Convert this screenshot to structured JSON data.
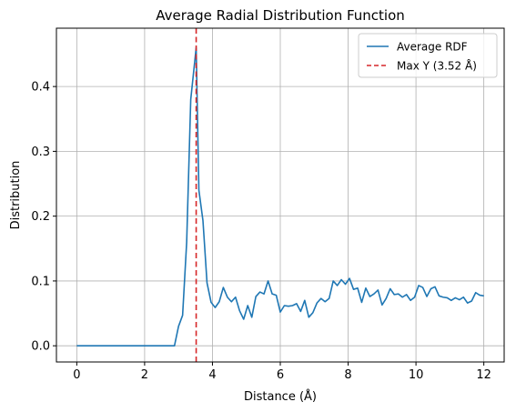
{
  "chart_data": {
    "type": "line",
    "title": "Average Radial Distribution Function",
    "xlabel": "Distance (Å)",
    "ylabel": "Distribution",
    "xlim": [
      -0.6,
      12.6
    ],
    "ylim": [
      -0.025,
      0.49
    ],
    "xticks": [
      0,
      2,
      4,
      6,
      8,
      10,
      12
    ],
    "xtick_labels": [
      "0",
      "2",
      "4",
      "6",
      "8",
      "10",
      "12"
    ],
    "yticks": [
      0.0,
      0.1,
      0.2,
      0.3,
      0.4
    ],
    "ytick_labels": [
      "0.0",
      "0.1",
      "0.2",
      "0.3",
      "0.4"
    ],
    "grid": true,
    "legend_position": "top-right",
    "colors": {
      "series": "#1f77b4",
      "vline": "#d62728",
      "grid": "#b0b0b0"
    },
    "series": [
      {
        "name": "Average RDF",
        "x": [
          0.0,
          0.12,
          0.24,
          0.36,
          0.48,
          0.6,
          0.72,
          0.84,
          0.96,
          1.08,
          1.2,
          1.32,
          1.44,
          1.56,
          1.68,
          1.8,
          1.92,
          2.04,
          2.16,
          2.28,
          2.4,
          2.52,
          2.64,
          2.76,
          2.88,
          3.0,
          3.12,
          3.24,
          3.36,
          3.52,
          3.6,
          3.72,
          3.84,
          3.96,
          4.08,
          4.2,
          4.32,
          4.44,
          4.56,
          4.68,
          4.8,
          4.92,
          5.04,
          5.16,
          5.28,
          5.4,
          5.52,
          5.64,
          5.76,
          5.88,
          6.0,
          6.12,
          6.24,
          6.36,
          6.48,
          6.6,
          6.72,
          6.84,
          6.96,
          7.08,
          7.2,
          7.32,
          7.44,
          7.56,
          7.68,
          7.8,
          7.92,
          8.04,
          8.16,
          8.28,
          8.4,
          8.52,
          8.64,
          8.76,
          8.88,
          9.0,
          9.12,
          9.24,
          9.36,
          9.48,
          9.6,
          9.72,
          9.84,
          9.96,
          10.08,
          10.2,
          10.32,
          10.44,
          10.56,
          10.68,
          10.8,
          10.92,
          11.04,
          11.16,
          11.28,
          11.4,
          11.52,
          11.64,
          11.76,
          11.88,
          12.0
        ],
        "y": [
          0,
          0,
          0,
          0,
          0,
          0,
          0,
          0,
          0,
          0,
          0,
          0,
          0,
          0,
          0,
          0,
          0,
          0,
          0,
          0,
          0,
          0,
          0,
          0,
          0,
          0.03,
          0.047,
          0.16,
          0.38,
          0.46,
          0.24,
          0.193,
          0.097,
          0.067,
          0.059,
          0.068,
          0.09,
          0.075,
          0.068,
          0.075,
          0.054,
          0.041,
          0.062,
          0.044,
          0.076,
          0.083,
          0.08,
          0.1,
          0.08,
          0.078,
          0.052,
          0.062,
          0.061,
          0.062,
          0.065,
          0.053,
          0.07,
          0.044,
          0.051,
          0.066,
          0.073,
          0.068,
          0.073,
          0.1,
          0.093,
          0.102,
          0.095,
          0.104,
          0.087,
          0.089,
          0.067,
          0.089,
          0.076,
          0.08,
          0.086,
          0.063,
          0.073,
          0.088,
          0.079,
          0.08,
          0.075,
          0.079,
          0.07,
          0.075,
          0.093,
          0.09,
          0.076,
          0.088,
          0.091,
          0.077,
          0.075,
          0.074,
          0.07,
          0.074,
          0.071,
          0.075,
          0.066,
          0.069,
          0.082,
          0.078,
          0.077
        ]
      }
    ],
    "vlines": [
      {
        "name": "Max Y (3.52 Å)",
        "x": 3.52,
        "style": "dashed"
      }
    ]
  }
}
